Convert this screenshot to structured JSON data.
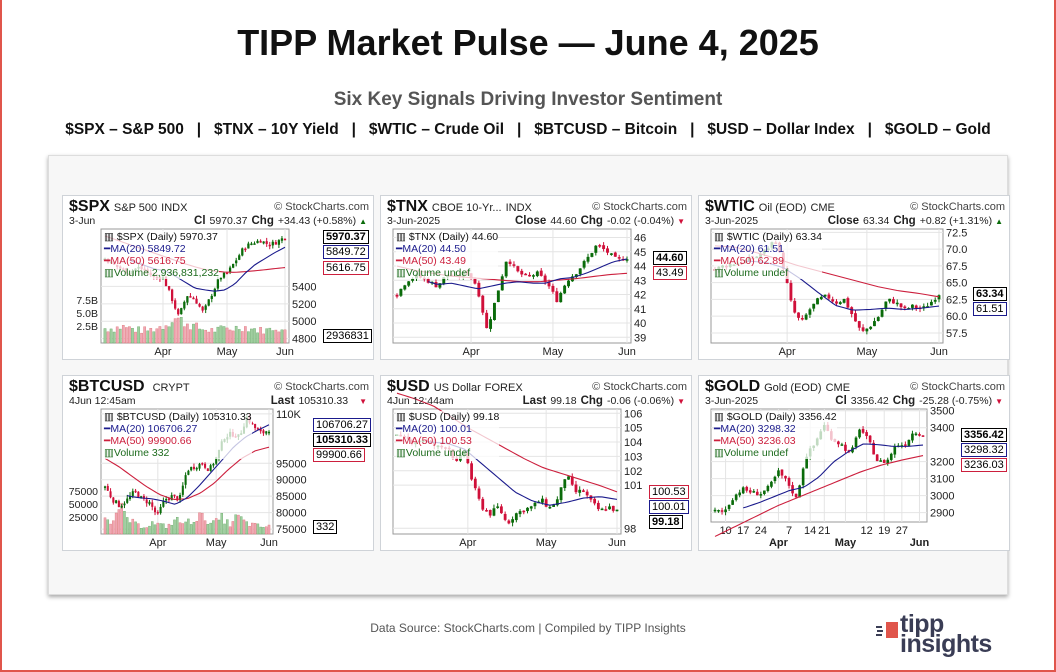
{
  "header": {
    "title": "TIPP Market Pulse — June 4, 2025",
    "subtitle": "Six Key Signals Driving Investor Sentiment",
    "tickers": "$SPX – S&P 500   |   $TNX – 10Y Yield   |   $WTIC – Crude Oil   |   $BTCUSD – Bitcoin   |   $USD – Dollar Index   |   $GOLD – Gold"
  },
  "footer": {
    "source": "Data Source: StockCharts.com | Compiled by TIPP Insights",
    "logo_line1": "tipp",
    "logo_line2": "insights"
  },
  "colors": {
    "up": "#0a6b0a",
    "down": "#d0103a",
    "ma20": "#1a1a8c",
    "ma50": "#cc1f3d",
    "accent": "#e0554b"
  },
  "chart_data": [
    {
      "type": "candlestick",
      "ticker": "$SPX",
      "name": "S&P 500",
      "exchange": "INDX",
      "source": "© StockCharts.com",
      "date": "3-Jun",
      "close_label": "Cl",
      "close": "5970.37",
      "chg_label": "Chg",
      "chg": "+34.43 (+0.58%)",
      "direction": "up",
      "legend": {
        "main": "$SPX (Daily) 5970.37",
        "ma20": "MA(20) 5849.72",
        "ma50": "MA(50) 5616.75",
        "volume": "Volume 2,936,831,232"
      },
      "tags": {
        "last": "5970.37",
        "ma20": "5849.72",
        "ma50": "5616.75",
        "volume": "2936831"
      },
      "ylim": [
        4750,
        6060
      ],
      "yticks": [
        "4800",
        "5000",
        "5200",
        "5400"
      ],
      "vol_ticks": [
        "2.5B",
        "5.0B",
        "7.5B"
      ],
      "vol_max": 10,
      "xticks": [
        {
          "label": "Apr",
          "index": 19
        },
        {
          "label": "May",
          "index": 40
        },
        {
          "label": "Jun",
          "index": 59
        }
      ],
      "closes": [
        5720,
        5650,
        5600,
        5560,
        5620,
        5580,
        5500,
        5520,
        5300,
        5050,
        5300,
        5250,
        5100,
        5300,
        5500,
        5560,
        5700,
        5850,
        5900,
        5930,
        5880,
        5910,
        5970
      ],
      "ma20": [
        5820,
        5770,
        5720,
        5680,
        5640,
        5600,
        5580,
        5520,
        5450,
        5380,
        5360,
        5345,
        5360,
        5430,
        5550,
        5650,
        5720,
        5790,
        5850
      ],
      "ma50": [
        5980,
        5940,
        5900,
        5860,
        5820,
        5780,
        5740,
        5700,
        5660,
        5625,
        5595,
        5575,
        5565,
        5562,
        5570,
        5580,
        5592,
        5605,
        5617
      ],
      "volume": [
        4,
        4,
        4.5,
        4,
        3.5,
        3.5,
        4,
        5,
        7,
        6,
        5,
        4,
        3.5,
        3.5,
        4,
        4,
        4.5,
        4,
        3.5,
        3.5,
        4.5,
        3
      ]
    },
    {
      "type": "candlestick",
      "ticker": "$TNX",
      "name": "CBOE 10-Yr...",
      "exchange": "INDX",
      "source": "© StockCharts.com",
      "date": "3-Jun-2025",
      "close_label": "Close",
      "close": "44.60",
      "chg_label": "Chg",
      "chg": "-0.02 (-0.04%)",
      "direction": "down",
      "legend": {
        "main": "$TNX (Daily) 44.60",
        "ma20": "MA(20) 44.50",
        "ma50": "MA(50) 43.49",
        "volume": "Volume undef"
      },
      "tags": {
        "last": "44.60",
        "ma20": "",
        "ma50": "43.49"
      },
      "ylim": [
        38.6,
        46.6
      ],
      "yticks": [
        "39",
        "40",
        "41",
        "42",
        "43",
        "44",
        "45",
        "46"
      ],
      "xticks": [
        {
          "label": "Apr",
          "index": 19
        },
        {
          "label": "May",
          "index": 40
        },
        {
          "label": "Jun",
          "index": 59
        }
      ],
      "closes": [
        42,
        43,
        43.3,
        43,
        42.6,
        43.4,
        43.2,
        43.6,
        42.6,
        39.5,
        42,
        44.6,
        43.6,
        43.2,
        43.5,
        42.8,
        41.6,
        43,
        43.6,
        44.5,
        45.5,
        45,
        44.4,
        44.6
      ],
      "ma20": [
        43.7,
        43.4,
        43,
        42.7,
        42.8,
        42.6,
        42.4,
        42.6,
        42.8,
        42.9,
        42.8,
        42.8,
        43.1,
        43.2,
        43.5,
        43.9,
        44.3,
        44.5
      ],
      "ma50": [
        44,
        43.7,
        43.5,
        43.3,
        43.2,
        43.1,
        43,
        42.9,
        42.9,
        43,
        43.1,
        43.25,
        43.4,
        43.49
      ]
    },
    {
      "type": "candlestick",
      "ticker": "$WTIC",
      "name": "Oil (EOD)",
      "exchange": "CME",
      "source": "© StockCharts.com",
      "date": "3-Jun-2025",
      "close_label": "Close",
      "close": "63.34",
      "chg_label": "Chg",
      "chg": "+0.82 (+1.31%)",
      "direction": "up",
      "legend": {
        "main": "$WTIC (Daily) 63.34",
        "ma20": "MA(20) 61.51",
        "ma50": "MA(50) 62.89",
        "volume": "Volume undef"
      },
      "tags": {
        "last": "63.34",
        "ma20": "61.51",
        "ma50": ""
      },
      "ylim": [
        56,
        73
      ],
      "yticks": [
        "57.5",
        "60.0",
        "62.5",
        "65.0",
        "67.5",
        "70.0",
        "72.5"
      ],
      "xticks": [
        {
          "label": "Apr",
          "index": 19
        },
        {
          "label": "May",
          "index": 40
        },
        {
          "label": "Jun",
          "index": 59
        }
      ],
      "closes": [
        67,
        67.5,
        67.8,
        68,
        68.5,
        69,
        70,
        71.5,
        67,
        61,
        59,
        61,
        62.5,
        63,
        62,
        62.5,
        60,
        57.5,
        58.5,
        60,
        62.5,
        62,
        61,
        61.5,
        61,
        62,
        63.34
      ],
      "ma20": [
        68,
        68.1,
        68.2,
        68,
        67.2,
        65.5,
        63.5,
        61.6,
        60.9,
        61,
        61.2,
        61,
        61.2,
        61.51
      ],
      "ma50": [
        70.5,
        70.3,
        69.5,
        68.6,
        67.6,
        66.8,
        66,
        65.2,
        64.4,
        63.8,
        63.4,
        62.89
      ]
    },
    {
      "type": "candlestick",
      "ticker": "$BTCUSD",
      "name": "",
      "exchange": "CRYPT",
      "source": "© StockCharts.com",
      "date": "4Jun 12:45am",
      "close_label": "Last",
      "close": "105310.33",
      "chg_label": "",
      "chg": "",
      "direction": "down",
      "legend": {
        "main": "$BTCUSD (Daily) 105310.33",
        "ma20": "MA(20) 106706.27",
        "ma50": "MA(50) 99900.66",
        "volume": "Volume 332"
      },
      "tags": {
        "last": "105310.33",
        "ma20": "106706.27",
        "ma50": "99900.66",
        "volume": "332"
      },
      "ylim": [
        73500,
        111500
      ],
      "yticks": [
        "75000",
        "80000",
        "85000",
        "90000",
        "95000",
        "110K"
      ],
      "vol_ticks": [
        "25000",
        "50000",
        "75000"
      ],
      "vol_max": 110000,
      "xticks": [
        {
          "label": "Apr",
          "index": 19
        },
        {
          "label": "May",
          "index": 40
        },
        {
          "label": "Jun",
          "index": 59
        }
      ],
      "closes": [
        88000,
        84000,
        82000,
        84000,
        86500,
        84000,
        83000,
        79000,
        84000,
        85000,
        84000,
        93000,
        94000,
        95000,
        93000,
        97000,
        103000,
        104000,
        103000,
        109000,
        106000,
        104000,
        105310
      ],
      "ma20": [
        90500,
        87000,
        85000,
        84500,
        84200,
        83500,
        82500,
        84500,
        88000,
        92000,
        96000,
        100000,
        103000,
        105000,
        106700
      ],
      "ma50": [
        96500,
        94000,
        91000,
        88000,
        85500,
        84000,
        84200,
        86000,
        89000,
        93000,
        96500,
        98800,
        99900
      ],
      "volume": [
        60000,
        30000,
        70000,
        40000,
        25000,
        20000,
        30000,
        25000,
        20000,
        40000,
        30000,
        35000,
        50000,
        40000,
        30000,
        45000,
        25000,
        50000,
        30000,
        25000,
        20000,
        20000
      ]
    },
    {
      "type": "candlestick",
      "ticker": "$USD",
      "name": "US Dollar",
      "exchange": "FOREX",
      "source": "© StockCharts.com",
      "date": "4Jun 12:44am",
      "close_label": "Last",
      "close": "99.18",
      "chg_label": "Chg",
      "chg": "-0.06 (-0.06%)",
      "direction": "down",
      "legend": {
        "main": "$USD (Daily) 99.18",
        "ma20": "MA(20) 100.01",
        "ma50": "MA(50) 100.53",
        "volume": "Volume undef"
      },
      "tags": {
        "last": "99.18",
        "ma20": "100.01",
        "ma50": "100.53"
      },
      "ylim": [
        97.6,
        106.3
      ],
      "yticks": [
        "98",
        "101",
        "102",
        "103",
        "104",
        "105",
        "106"
      ],
      "xticks": [
        {
          "label": "Apr",
          "index": 19
        },
        {
          "label": "May",
          "index": 40
        },
        {
          "label": "Jun",
          "index": 59
        }
      ],
      "closes": [
        104.4,
        104.2,
        104,
        104.2,
        103.9,
        103.6,
        103.8,
        102.5,
        103.4,
        101,
        99.5,
        99,
        99.5,
        98.3,
        99,
        99.3,
        99.5,
        100,
        99.4,
        100,
        101.8,
        100.5,
        100.6,
        99.8,
        99.2,
        99.5,
        99.18
      ],
      "ma20": [
        104.2,
        104.1,
        104,
        103.9,
        103.5,
        102.5,
        101.5,
        100.5,
        99.9,
        99.6,
        99.8,
        100.1,
        100.2,
        100.01
      ],
      "ma50": [
        107.4,
        107,
        106.5,
        105.7,
        104.9,
        104.2,
        103.5,
        102.8,
        102.2,
        101.8,
        101.4,
        101,
        100.53
      ]
    },
    {
      "type": "candlestick",
      "ticker": "$GOLD",
      "name": "Gold (EOD)",
      "exchange": "CME",
      "source": "© StockCharts.com",
      "date": "3-Jun-2025",
      "close_label": "Cl",
      "close": "3356.42",
      "chg_label": "Chg",
      "chg": "-25.28 (-0.75%)",
      "direction": "down",
      "legend": {
        "main": "$GOLD (Daily) 3356.42",
        "ma20": "MA(20) 3298.32",
        "ma50": "MA(50) 3236.03",
        "volume": "Volume undef"
      },
      "tags": {
        "last": "3356.42",
        "ma20": "3298.32",
        "ma50": "3236.03"
      },
      "ylim": [
        2845,
        3510
      ],
      "yticks": [
        "2900",
        "3000",
        "3100",
        "3200",
        "3400",
        "3500"
      ],
      "xticks": [
        {
          "label": "10",
          "index": 3
        },
        {
          "label": "17",
          "index": 8
        },
        {
          "label": "24",
          "index": 13
        },
        {
          "label": "Apr",
          "index": 18,
          "bold": true
        },
        {
          "label": "7",
          "index": 21
        },
        {
          "label": "14",
          "index": 27
        },
        {
          "label": "21",
          "index": 31
        },
        {
          "label": "May",
          "index": 37,
          "bold": true
        },
        {
          "label": "12",
          "index": 43
        },
        {
          "label": "19",
          "index": 48
        },
        {
          "label": "27",
          "index": 53
        },
        {
          "label": "Jun",
          "index": 58,
          "bold": true
        }
      ],
      "closes": [
        2910,
        2905,
        2990,
        3040,
        3020,
        3010,
        3050,
        3140,
        3080,
        2980,
        3230,
        3300,
        3420,
        3330,
        3300,
        3240,
        3400,
        3320,
        3200,
        3200,
        3300,
        3300,
        3380,
        3356
      ],
      "ma20": [
        2900,
        2910,
        2930,
        2960,
        2995,
        3030,
        3050,
        3110,
        3200,
        3260,
        3305,
        3300,
        3290,
        3290,
        3298
      ],
      "ma50": [
        2760,
        2820,
        2880,
        2940,
        2990,
        3040,
        3090,
        3140,
        3180,
        3210,
        3236
      ]
    }
  ]
}
